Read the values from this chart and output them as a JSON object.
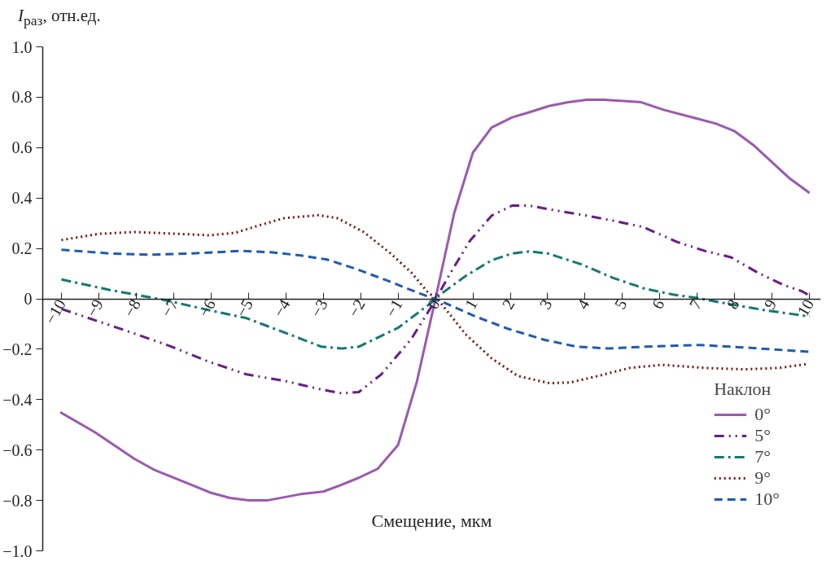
{
  "chart_data": {
    "type": "line",
    "xlabel": "Смещение, мкм",
    "ylabel": "I$_{раз}$, отн.ед.",
    "legend_title": "Наклон",
    "legend": "bottom right",
    "grid": false,
    "xlim": [
      -10.5,
      10.3
    ],
    "ylim": [
      -1.0,
      1.0
    ],
    "xticks": [
      {
        "value": -10,
        "label": "−10"
      },
      {
        "value": -9,
        "label": "−9"
      },
      {
        "value": -8,
        "label": "−8"
      },
      {
        "value": -7,
        "label": "−7"
      },
      {
        "value": -6,
        "label": "−6"
      },
      {
        "value": -5,
        "label": "−5"
      },
      {
        "value": -4,
        "label": "−4"
      },
      {
        "value": -3,
        "label": "−3"
      },
      {
        "value": -2,
        "label": "−2"
      },
      {
        "value": -1,
        "label": "−1"
      },
      0,
      1,
      2,
      3,
      4,
      5,
      6,
      7,
      8,
      9,
      10
    ],
    "yticks": [
      {
        "value": -1.0,
        "label": "−1.0"
      },
      {
        "value": -0.8,
        "label": "−0.8"
      },
      {
        "value": -0.6,
        "label": "−0.6"
      },
      {
        "value": -0.4,
        "label": "−0.4"
      },
      {
        "value": -0.2,
        "label": "−0.2"
      },
      0,
      0.2,
      0.4,
      0.6,
      0.8,
      {
        "value": 1.0,
        "label": "1.0"
      }
    ],
    "series": [
      {
        "name": "0°",
        "color": "#9b59b0",
        "line_style": "solid",
        "x": [
          -10.03,
          -9.1,
          -8.05,
          -7.5,
          -6.0,
          -5.5,
          -5.0,
          -4.5,
          -3.6,
          -3.0,
          -2.55,
          -2.05,
          -1.55,
          -1.0,
          -0.5,
          0,
          0.5,
          1.0,
          1.5,
          2.05,
          2.5,
          3.03,
          3.55,
          4.05,
          4.5,
          5.5,
          6.1,
          7.0,
          7.5,
          8.0,
          8.5,
          9.45,
          10.0
        ],
        "values": [
          -0.45,
          -0.53,
          -0.635,
          -0.68,
          -0.77,
          -0.79,
          -0.8,
          -0.8,
          -0.775,
          -0.765,
          -0.74,
          -0.71,
          -0.675,
          -0.58,
          -0.33,
          0.0,
          0.34,
          0.58,
          0.68,
          0.72,
          0.74,
          0.765,
          0.78,
          0.79,
          0.79,
          0.78,
          0.75,
          0.715,
          0.695,
          0.665,
          0.61,
          0.48,
          0.42
        ]
      },
      {
        "name": "5°",
        "color": "#6a1b8a",
        "line_style": "dashdotdot",
        "x": [
          -10.0,
          -9.0,
          -8.1,
          -7.05,
          -6.05,
          -5.05,
          -4.05,
          -3.05,
          -2.5,
          -2.05,
          -1.45,
          -0.65,
          0.0,
          0.35,
          0.92,
          1.5,
          2.05,
          2.5,
          3.05,
          4.05,
          4.75,
          5.55,
          6.47,
          7.2,
          7.9,
          8.6,
          9.3,
          9.8,
          10.0
        ],
        "values": [
          -0.04,
          -0.09,
          -0.135,
          -0.19,
          -0.25,
          -0.3,
          -0.325,
          -0.36,
          -0.375,
          -0.37,
          -0.3,
          -0.16,
          -0.005,
          0.09,
          0.23,
          0.33,
          0.37,
          0.37,
          0.355,
          0.33,
          0.31,
          0.285,
          0.225,
          0.19,
          0.165,
          0.105,
          0.055,
          0.03,
          0.013
        ]
      },
      {
        "name": "7°",
        "color": "#137a72",
        "line_style": "dashdot",
        "x": [
          -10.0,
          -8.7,
          -7.3,
          -6.05,
          -5.05,
          -4.05,
          -3.05,
          -2.5,
          -2.05,
          -1.0,
          -0.15,
          0.2,
          0.8,
          1.5,
          2.05,
          2.5,
          3.0,
          3.9,
          4.75,
          5.6,
          6.35,
          7.0,
          7.9,
          8.8,
          10.0
        ],
        "values": [
          0.077,
          0.035,
          -0.003,
          -0.045,
          -0.077,
          -0.133,
          -0.19,
          -0.197,
          -0.19,
          -0.115,
          -0.02,
          0.025,
          0.09,
          0.153,
          0.18,
          0.188,
          0.18,
          0.137,
          0.083,
          0.04,
          0.017,
          0.003,
          -0.022,
          -0.045,
          -0.07
        ]
      },
      {
        "name": "9°",
        "color": "#7b1010",
        "line_style": "dotted",
        "x": [
          -10.0,
          -9.0,
          -8.05,
          -6.9,
          -6.05,
          -5.35,
          -4.75,
          -4.05,
          -3.13,
          -2.62,
          -1.92,
          -1.2,
          -0.65,
          -0.2,
          0.07,
          0.8,
          1.5,
          2.2,
          3.05,
          3.6,
          4.35,
          5.2,
          6.05,
          7.2,
          8.25,
          9.2,
          9.97
        ],
        "values": [
          0.233,
          0.258,
          0.265,
          0.258,
          0.252,
          0.262,
          0.29,
          0.32,
          0.332,
          0.32,
          0.265,
          0.18,
          0.105,
          0.025,
          -0.003,
          -0.14,
          -0.236,
          -0.306,
          -0.335,
          -0.332,
          -0.306,
          -0.274,
          -0.262,
          -0.274,
          -0.28,
          -0.274,
          -0.258
        ]
      },
      {
        "name": "10°",
        "color": "#1f5bb5",
        "line_style": "dashed",
        "x": [
          -10.0,
          -8.7,
          -7.6,
          -6.5,
          -5.2,
          -4.4,
          -3.6,
          -2.9,
          -2.15,
          -1.3,
          -0.5,
          0.2,
          1.07,
          1.92,
          2.92,
          3.78,
          4.63,
          5.6,
          7.05,
          8.25,
          9.97
        ],
        "values": [
          0.195,
          0.18,
          0.175,
          0.18,
          0.19,
          0.185,
          0.172,
          0.156,
          0.12,
          0.073,
          0.026,
          -0.013,
          -0.07,
          -0.118,
          -0.163,
          -0.19,
          -0.197,
          -0.19,
          -0.183,
          -0.193,
          -0.21
        ]
      }
    ]
  }
}
